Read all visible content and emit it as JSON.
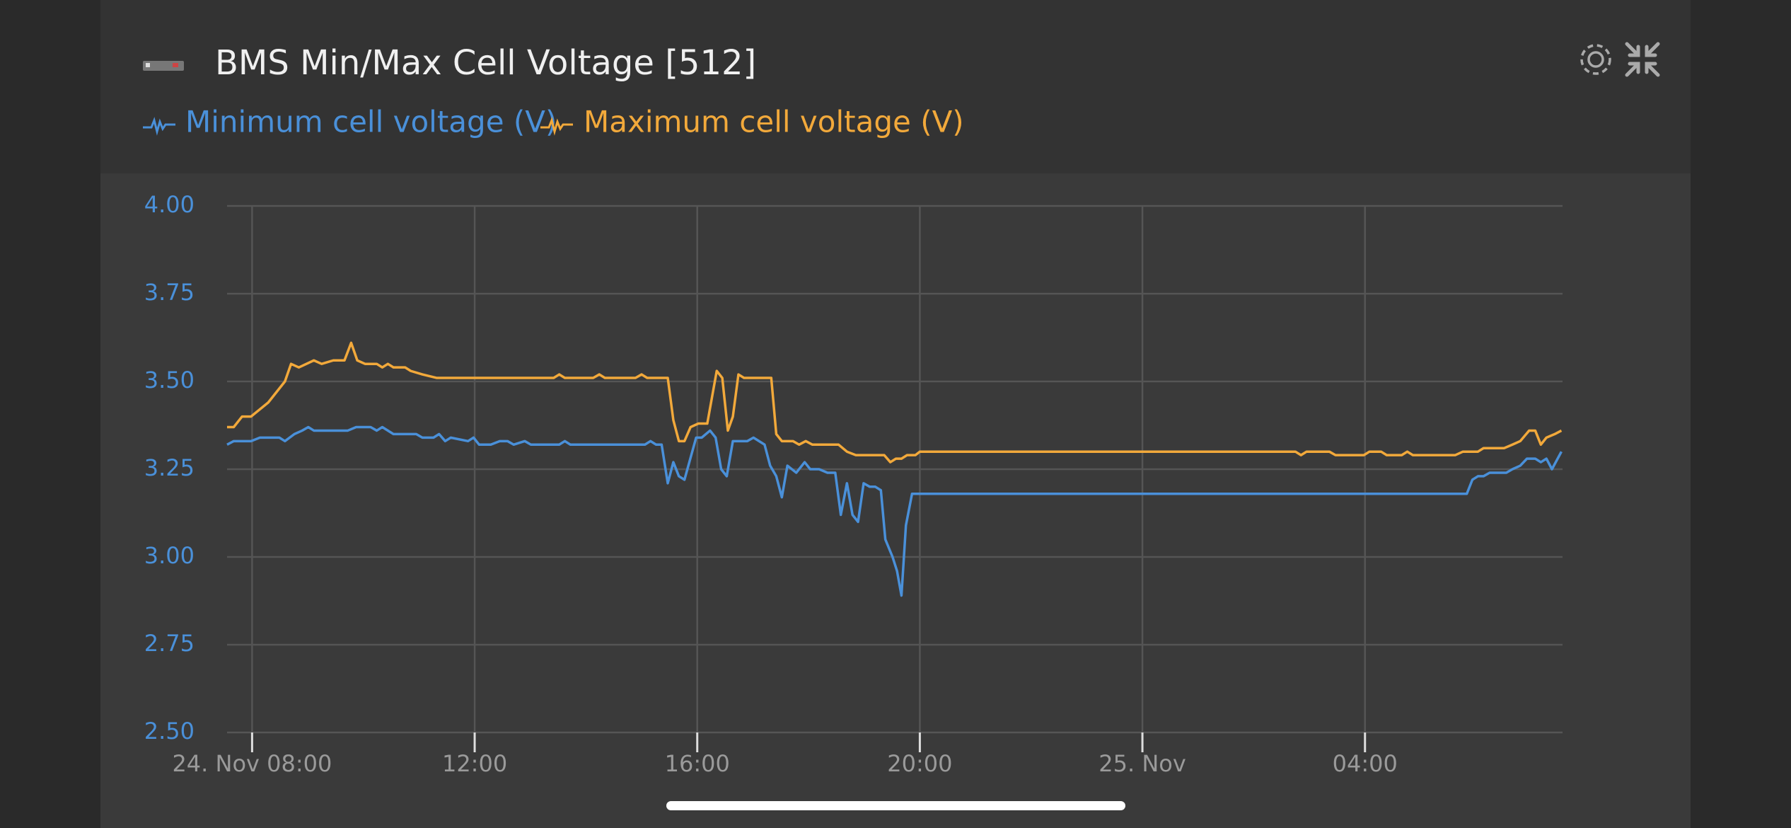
{
  "chart_data": {
    "type": "line",
    "title": "BMS Min/Max Cell Voltage [512]",
    "xlim": [
      7.55,
      31.55
    ],
    "xticks": [
      {
        "value": 8,
        "label": "24. Nov 08:00"
      },
      {
        "value": 12,
        "label": "12:00"
      },
      {
        "value": 16,
        "label": "16:00"
      },
      {
        "value": 20,
        "label": "20:00"
      },
      {
        "value": 24,
        "label": "25. Nov"
      },
      {
        "value": 28,
        "label": "04:00"
      }
    ],
    "ylim": [
      2.5,
      4.0
    ],
    "yticks": [
      {
        "value": 2.5,
        "label": "2.50"
      },
      2.75,
      {
        "value": 3,
        "label": "3.00"
      },
      3.25,
      {
        "value": 3.5,
        "label": "3.50"
      },
      3.75,
      {
        "value": 4,
        "label": "4.00"
      }
    ],
    "grid": true,
    "series": [
      {
        "name": "Minimum cell voltage (V)",
        "color": "#4a90d9",
        "x": [
          7.55,
          7.67,
          7.98,
          8.14,
          8.49,
          8.59,
          8.76,
          8.9,
          9.01,
          9.11,
          9.72,
          9.87,
          10.13,
          10.24,
          10.34,
          10.54,
          10.95,
          11.06,
          11.26,
          11.36,
          11.47,
          11.57,
          11.88,
          11.98,
          12.08,
          12.29,
          12.45,
          12.59,
          12.7,
          12.9,
          13.01,
          13.52,
          13.62,
          13.72,
          15.06,
          15.16,
          15.26,
          15.36,
          15.47,
          15.57,
          15.67,
          15.77,
          15.98,
          16.08,
          16.23,
          16.33,
          16.43,
          16.53,
          16.64,
          16.9,
          17.01,
          17.21,
          17.31,
          17.42,
          17.52,
          17.62,
          17.78,
          17.93,
          18.03,
          18.19,
          18.34,
          18.48,
          18.58,
          18.69,
          18.79,
          18.89,
          18.99,
          19.1,
          19.2,
          19.3,
          19.38,
          19.51,
          19.59,
          19.67,
          19.75,
          19.86,
          29.83,
          29.93,
          30.03,
          30.13,
          30.24,
          30.54,
          30.65,
          30.79,
          30.91,
          31.06,
          31.16,
          31.26,
          31.36,
          31.53
        ],
        "values": [
          3.32,
          3.33,
          3.33,
          3.34,
          3.34,
          3.33,
          3.35,
          3.36,
          3.37,
          3.36,
          3.36,
          3.37,
          3.37,
          3.36,
          3.37,
          3.35,
          3.35,
          3.34,
          3.34,
          3.35,
          3.33,
          3.34,
          3.33,
          3.34,
          3.32,
          3.32,
          3.33,
          3.33,
          3.32,
          3.33,
          3.32,
          3.32,
          3.33,
          3.32,
          3.32,
          3.33,
          3.32,
          3.32,
          3.21,
          3.27,
          3.23,
          3.22,
          3.34,
          3.34,
          3.36,
          3.34,
          3.25,
          3.23,
          3.33,
          3.33,
          3.34,
          3.32,
          3.26,
          3.23,
          3.17,
          3.26,
          3.24,
          3.27,
          3.25,
          3.25,
          3.24,
          3.24,
          3.12,
          3.21,
          3.12,
          3.1,
          3.21,
          3.2,
          3.2,
          3.19,
          3.05,
          3.0,
          2.96,
          2.89,
          3.09,
          3.18,
          3.18,
          3.22,
          3.23,
          3.23,
          3.24,
          3.24,
          3.25,
          3.26,
          3.28,
          3.28,
          3.27,
          3.28,
          3.25,
          3.3
        ]
      },
      {
        "name": "Maximum cell voltage (V)",
        "color": "#f2a93b",
        "x": [
          7.55,
          7.67,
          7.82,
          7.98,
          8.29,
          8.59,
          8.7,
          8.84,
          9.11,
          9.25,
          9.46,
          9.66,
          9.78,
          9.89,
          10.03,
          10.24,
          10.34,
          10.44,
          10.54,
          10.75,
          10.85,
          11.06,
          11.32,
          13.42,
          13.52,
          13.62,
          14.13,
          14.24,
          14.34,
          14.89,
          15.0,
          15.1,
          15.47,
          15.57,
          15.67,
          15.77,
          15.88,
          16.02,
          16.18,
          16.35,
          16.45,
          16.55,
          16.64,
          16.74,
          16.84,
          17.33,
          17.42,
          17.52,
          17.72,
          17.83,
          17.95,
          18.07,
          18.54,
          18.69,
          18.85,
          19.36,
          19.47,
          19.57,
          19.67,
          19.77,
          19.92,
          20.0,
          26.75,
          26.85,
          26.95,
          27.36,
          27.47,
          27.98,
          28.08,
          28.29,
          28.39,
          28.66,
          28.76,
          28.86,
          29.62,
          29.76,
          30.03,
          30.13,
          30.5,
          30.65,
          30.79,
          30.95,
          31.06,
          31.16,
          31.26,
          31.41,
          31.53
        ],
        "values": [
          3.37,
          3.37,
          3.4,
          3.4,
          3.44,
          3.5,
          3.55,
          3.54,
          3.56,
          3.55,
          3.56,
          3.56,
          3.61,
          3.56,
          3.55,
          3.55,
          3.54,
          3.55,
          3.54,
          3.54,
          3.53,
          3.52,
          3.51,
          3.51,
          3.52,
          3.51,
          3.51,
          3.52,
          3.51,
          3.51,
          3.52,
          3.51,
          3.51,
          3.39,
          3.33,
          3.33,
          3.37,
          3.38,
          3.38,
          3.53,
          3.51,
          3.36,
          3.4,
          3.52,
          3.51,
          3.51,
          3.35,
          3.33,
          3.33,
          3.32,
          3.33,
          3.32,
          3.32,
          3.3,
          3.29,
          3.29,
          3.27,
          3.28,
          3.28,
          3.29,
          3.29,
          3.3,
          3.3,
          3.29,
          3.3,
          3.3,
          3.29,
          3.29,
          3.3,
          3.3,
          3.29,
          3.29,
          3.3,
          3.29,
          3.29,
          3.3,
          3.3,
          3.31,
          3.31,
          3.32,
          3.33,
          3.36,
          3.36,
          3.32,
          3.34,
          3.35,
          3.36
        ]
      }
    ]
  }
}
